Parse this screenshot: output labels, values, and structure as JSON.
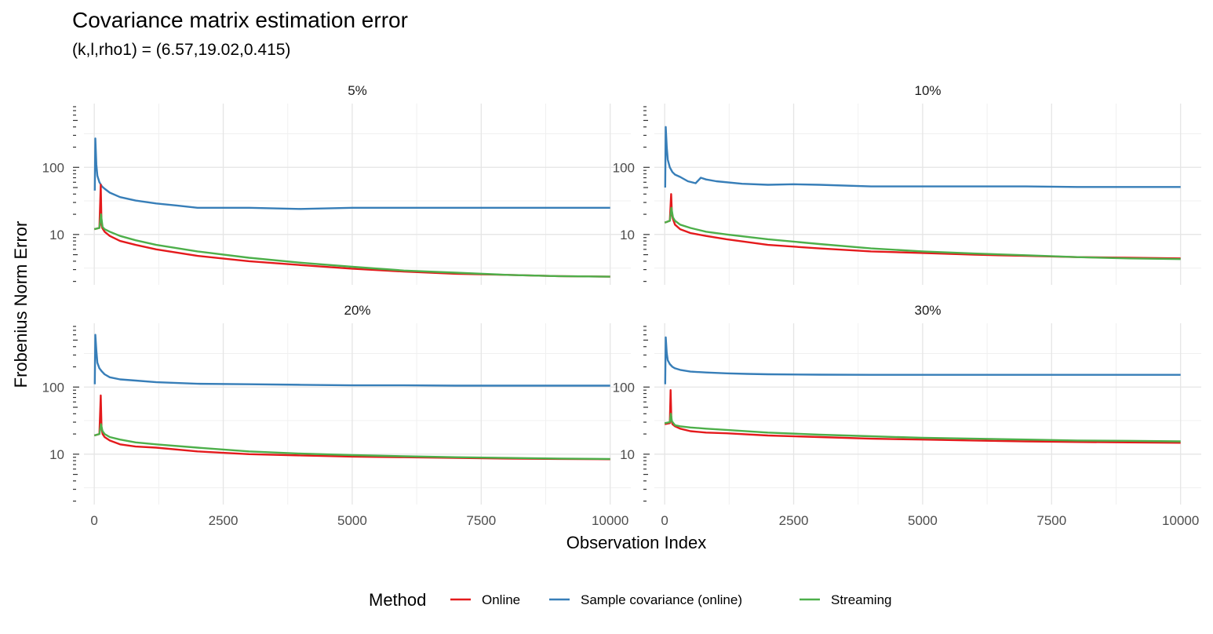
{
  "title": "Covariance matrix estimation error",
  "subtitle": "(k,l,rho1) = (6.57,19.02,0.415)",
  "chart_data": {
    "type": "line",
    "xlabel": "Observation Index",
    "ylabel": "Frobenius Norm Error",
    "x_ticks": [
      "0",
      "2500",
      "5000",
      "7500",
      "10000"
    ],
    "y_ticks": [
      "10",
      "100"
    ],
    "xlim": [
      -200,
      10400
    ],
    "ylim_log10": [
      0.25,
      2.95
    ],
    "y_scale": "log10",
    "grid": true,
    "legend": {
      "title": "Method",
      "position": "bottom",
      "entries": [
        {
          "label": "Online",
          "color": "#e41a1c"
        },
        {
          "label": "Sample covariance (online)",
          "color": "#377eb8"
        },
        {
          "label": "Streaming",
          "color": "#4daf4a"
        }
      ]
    },
    "panels": [
      {
        "label": "5%",
        "series": [
          {
            "name": "Sample covariance (online)",
            "color": "#377eb8",
            "x": [
              10,
              20,
              40,
              60,
              100,
              150,
              200,
              300,
              500,
              800,
              1200,
              1600,
              2000,
              2500,
              3000,
              4000,
              5000,
              6000,
              7000,
              8000,
              9000,
              10000
            ],
            "y": [
              45,
              270,
              110,
              75,
              60,
              52,
              48,
              42,
              36,
              32,
              29,
              27,
              25,
              25,
              25,
              24,
              25,
              25,
              25,
              25,
              25,
              25
            ]
          },
          {
            "name": "Online",
            "color": "#e41a1c",
            "x": [
              0,
              100,
              125,
              140,
              155,
              200,
              300,
              500,
              800,
              1200,
              2000,
              3000,
              4000,
              5000,
              6000,
              7000,
              8000,
              9000,
              10000
            ],
            "y": [
              12,
              12.5,
              55,
              14,
              12.5,
              11,
              9.5,
              8,
              7,
              6,
              4.8,
              4,
              3.5,
              3.1,
              2.8,
              2.6,
              2.5,
              2.4,
              2.35
            ]
          },
          {
            "name": "Streaming",
            "color": "#4daf4a",
            "x": [
              0,
              100,
              130,
              160,
              200,
              300,
              500,
              800,
              1200,
              2000,
              3000,
              4000,
              5000,
              6000,
              7000,
              8000,
              9000,
              10000
            ],
            "y": [
              12,
              12.5,
              20,
              13,
              12,
              11,
              9.5,
              8.2,
              7,
              5.6,
              4.5,
              3.8,
              3.3,
              2.9,
              2.7,
              2.5,
              2.4,
              2.35
            ]
          }
        ]
      },
      {
        "label": "10%",
        "series": [
          {
            "name": "Sample covariance (online)",
            "color": "#377eb8",
            "x": [
              10,
              20,
              40,
              60,
              100,
              150,
              200,
              300,
              450,
              600,
              700,
              800,
              1000,
              1500,
              2000,
              2500,
              3000,
              4000,
              5000,
              6000,
              7000,
              8000,
              9000,
              10000
            ],
            "y": [
              50,
              400,
              200,
              130,
              100,
              85,
              78,
              72,
              62,
              58,
              70,
              66,
              62,
              57,
              55,
              56,
              55,
              52,
              52,
              52,
              52,
              51,
              51,
              51
            ]
          },
          {
            "name": "Online",
            "color": "#e41a1c",
            "x": [
              0,
              100,
              125,
              140,
              160,
              200,
              300,
              500,
              800,
              1200,
              2000,
              3000,
              4000,
              5000,
              6000,
              7000,
              8000,
              9000,
              10000
            ],
            "y": [
              15,
              16,
              40,
              20,
              17,
              14,
              12,
              10.5,
              9.5,
              8.5,
              7,
              6.2,
              5.6,
              5.3,
              5,
              4.8,
              4.6,
              4.5,
              4.4
            ]
          },
          {
            "name": "Streaming",
            "color": "#4daf4a",
            "x": [
              0,
              100,
              130,
              160,
              200,
              300,
              500,
              800,
              1200,
              2000,
              3000,
              4000,
              5000,
              6000,
              7000,
              8000,
              9000,
              10000
            ],
            "y": [
              15,
              16,
              25,
              18,
              16,
              14,
              12.5,
              11,
              10,
              8.5,
              7.2,
              6.2,
              5.6,
              5.2,
              4.9,
              4.6,
              4.4,
              4.3
            ]
          }
        ]
      },
      {
        "label": "20%",
        "series": [
          {
            "name": "Sample covariance (online)",
            "color": "#377eb8",
            "x": [
              10,
              20,
              40,
              60,
              100,
              150,
              200,
              300,
              500,
              800,
              1200,
              1600,
              2000,
              3000,
              4000,
              5000,
              6000,
              7000,
              8000,
              9000,
              10000
            ],
            "y": [
              110,
              600,
              350,
              230,
              190,
              170,
              155,
              140,
              130,
              125,
              118,
              115,
              112,
              110,
              108,
              106,
              106,
              105,
              105,
              105,
              105
            ]
          },
          {
            "name": "Online",
            "color": "#e41a1c",
            "x": [
              0,
              100,
              125,
              140,
              160,
              200,
              300,
              500,
              800,
              1200,
              2000,
              3000,
              4000,
              5000,
              6000,
              7000,
              8000,
              9000,
              10000
            ],
            "y": [
              19,
              20,
              75,
              25,
              20,
              18,
              16,
              14,
              13,
              12.5,
              11,
              10,
              9.6,
              9.2,
              9,
              8.8,
              8.6,
              8.5,
              8.4
            ]
          },
          {
            "name": "Streaming",
            "color": "#4daf4a",
            "x": [
              0,
              100,
              130,
              160,
              200,
              300,
              500,
              800,
              1200,
              2000,
              3000,
              4000,
              5000,
              6000,
              7000,
              8000,
              9000,
              10000
            ],
            "y": [
              19,
              20,
              28,
              22,
              20,
              18,
              16.5,
              15,
              14,
              12.5,
              11,
              10.2,
              9.7,
              9.3,
              9,
              8.8,
              8.6,
              8.5
            ]
          }
        ]
      },
      {
        "label": "30%",
        "series": [
          {
            "name": "Sample covariance (online)",
            "color": "#377eb8",
            "x": [
              10,
              20,
              40,
              60,
              100,
              150,
              200,
              300,
              500,
              800,
              1200,
              1600,
              2000,
              3000,
              4000,
              5000,
              6000,
              7000,
              8000,
              9000,
              10000
            ],
            "y": [
              110,
              550,
              320,
              250,
              220,
              200,
              190,
              180,
              170,
              165,
              160,
              157,
              155,
              153,
              152,
              152,
              152,
              152,
              152,
              152,
              152
            ]
          },
          {
            "name": "Online",
            "color": "#e41a1c",
            "x": [
              0,
              100,
              115,
              130,
              150,
              200,
              300,
              500,
              800,
              1200,
              2000,
              3000,
              4000,
              5000,
              6000,
              7000,
              8000,
              9000,
              10000
            ],
            "y": [
              28,
              29,
              90,
              32,
              28,
              26,
              24,
              22,
              21,
              20.5,
              19,
              18,
              17,
              16.5,
              16,
              15.5,
              15.2,
              15,
              14.8
            ]
          },
          {
            "name": "Streaming",
            "color": "#4daf4a",
            "x": [
              0,
              100,
              120,
              140,
              170,
              200,
              300,
              500,
              800,
              1200,
              2000,
              3000,
              4000,
              5000,
              6000,
              7000,
              8000,
              9000,
              10000
            ],
            "y": [
              29,
              30,
              40,
              31,
              29,
              27,
              26,
              25,
              24,
              23,
              21,
              19.5,
              18.5,
              17.5,
              17,
              16.5,
              16,
              15.8,
              15.5
            ]
          }
        ]
      }
    ]
  }
}
